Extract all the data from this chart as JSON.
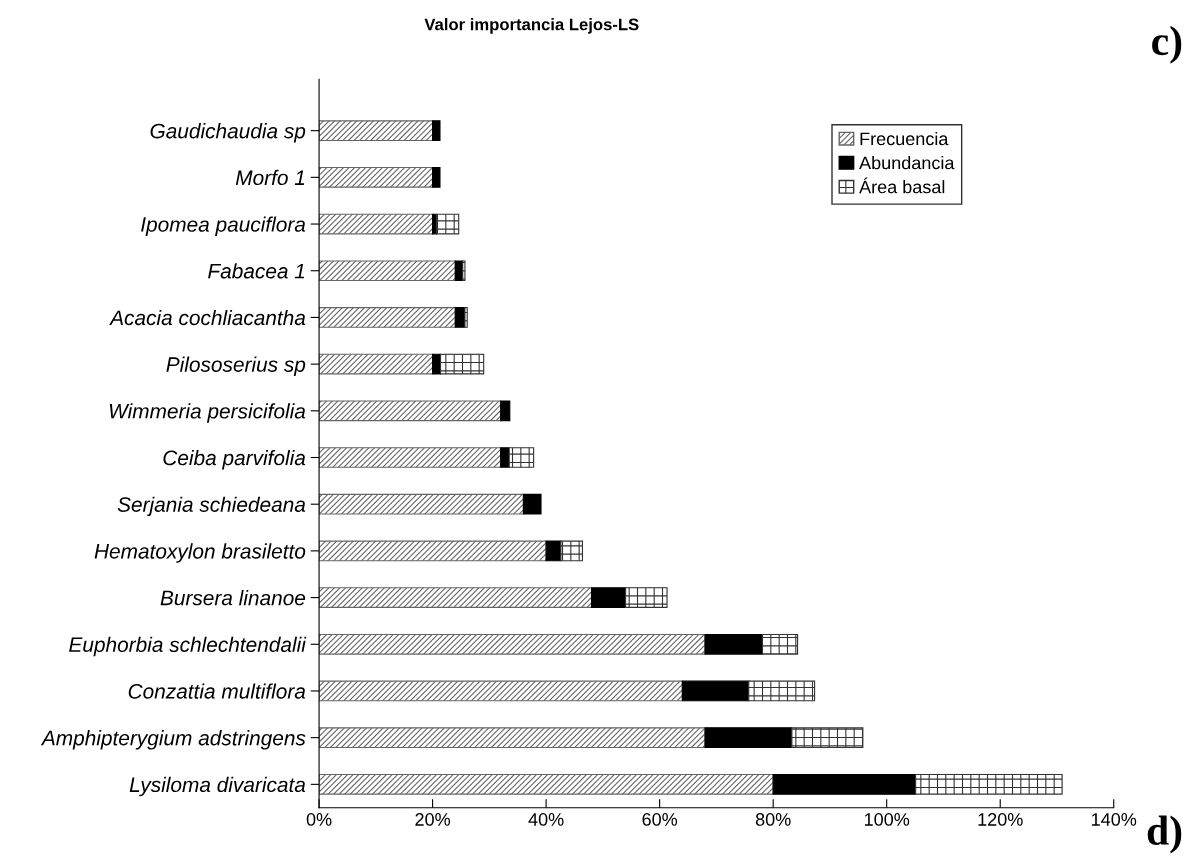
{
  "chart_data": {
    "type": "bar",
    "orientation": "horizontal",
    "stacked": true,
    "title": "Valor importancia Lejos-LS",
    "categories": [
      "Gaudichaudia sp",
      "Morfo 1",
      "Ipomea pauciflora",
      "Fabacea 1",
      "Acacia cochliacantha",
      "Pilososerius sp",
      "Wimmeria persicifolia",
      "Ceiba parvifolia",
      "Serjania schiedeana",
      "Hematoxylon brasiletto",
      "Bursera linanoe",
      "Euphorbia schlechtendalii",
      "Conzattia multiflora",
      "Amphipterygium adstringens",
      "Lysiloma divaricata"
    ],
    "series": [
      {
        "name": "Frecuencia",
        "color": "#666666",
        "values": [
          20,
          20,
          20,
          24,
          24,
          20,
          32,
          32,
          36,
          40,
          48,
          68,
          64,
          68,
          80
        ]
      },
      {
        "name": "Abundancia",
        "color": "#000000",
        "values": [
          1.3,
          1.3,
          0.7,
          1.3,
          1.7,
          1.4,
          1.6,
          1.5,
          3.1,
          2.6,
          6,
          10.1,
          11.7,
          15.3,
          25.1
        ]
      },
      {
        "name": "Área basal",
        "color": "#333333",
        "values": [
          null,
          null,
          3.9,
          0.4,
          0.4,
          7.6,
          null,
          4.3,
          null,
          3.8,
          7.3,
          6.2,
          11.6,
          12.5,
          25.8
        ]
      }
    ],
    "xlim": [
      0,
      140
    ],
    "xticks": [
      {
        "value": 0,
        "label": "0%"
      },
      {
        "value": 20,
        "label": "20%"
      },
      {
        "value": 40,
        "label": "40%"
      },
      {
        "value": 60,
        "label": "60%"
      },
      {
        "value": 80,
        "label": "80%"
      },
      {
        "value": 100,
        "label": "100%"
      },
      {
        "value": 120,
        "label": "120%"
      },
      {
        "value": 140,
        "label": "140%"
      }
    ],
    "grid": false,
    "legend": "top right",
    "annotations": [
      "c)",
      "d)"
    ]
  }
}
